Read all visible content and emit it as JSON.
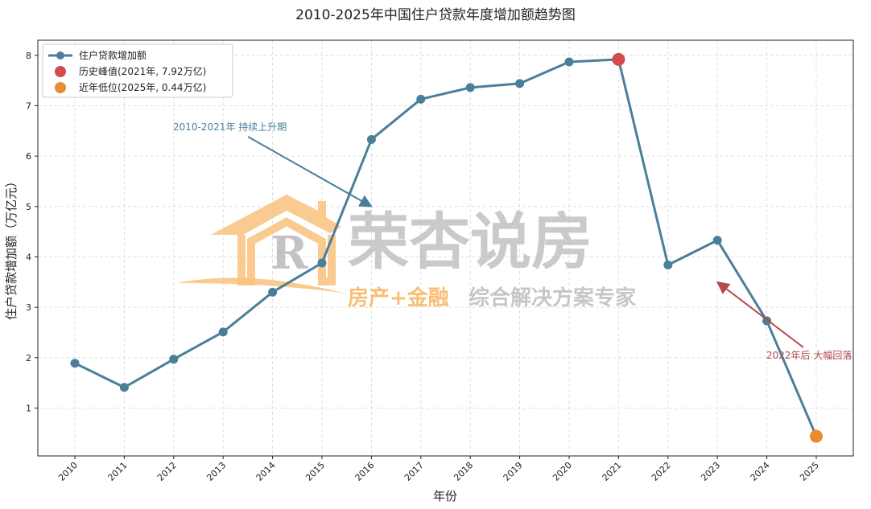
{
  "chart_data": {
    "type": "line",
    "title": "2010-2025年中国住户贷款年度增加额趋势图",
    "xlabel": "年份",
    "ylabel": "住户贷款增加额（万亿元）",
    "x": [
      "2010",
      "2011",
      "2012",
      "2013",
      "2014",
      "2015",
      "2016",
      "2017",
      "2018",
      "2019",
      "2020",
      "2021",
      "2022",
      "2023",
      "2024",
      "2025"
    ],
    "series": [
      {
        "name": "住户贷款增加额",
        "values": [
          1.89,
          1.41,
          1.97,
          2.51,
          3.3,
          3.88,
          6.33,
          7.13,
          7.36,
          7.44,
          7.87,
          7.92,
          3.84,
          4.33,
          2.73,
          0.44
        ],
        "color": "#4a7f99"
      }
    ],
    "highlights": [
      {
        "label": "历史峰值(2021年, 7.92万亿)",
        "x": "2021",
        "y": 7.92,
        "color": "#d24c4c"
      },
      {
        "label": "近年低位(2025年, 0.44万亿)",
        "x": "2025",
        "y": 0.44,
        "color": "#e88c30"
      }
    ],
    "annotations": [
      {
        "text": "2010-2021年 持续上升期",
        "color": "#4a7f99",
        "target_x": 6.0,
        "target_y": 5.0
      },
      {
        "text": "2022年后 大幅回落",
        "color": "#b44a4a",
        "target_x": 13.0,
        "target_y": 3.5
      }
    ],
    "yticks": [
      1,
      2,
      3,
      4,
      5,
      6,
      7,
      8
    ],
    "ylim": [
      0.05,
      8.3
    ],
    "grid": true,
    "legend_position": "top-left"
  },
  "watermark": {
    "logo_letter": "R",
    "main_text": "荣杏说房",
    "sub_text_orange": "房产+金融",
    "sub_text_gray": "综合解决方案专家"
  }
}
